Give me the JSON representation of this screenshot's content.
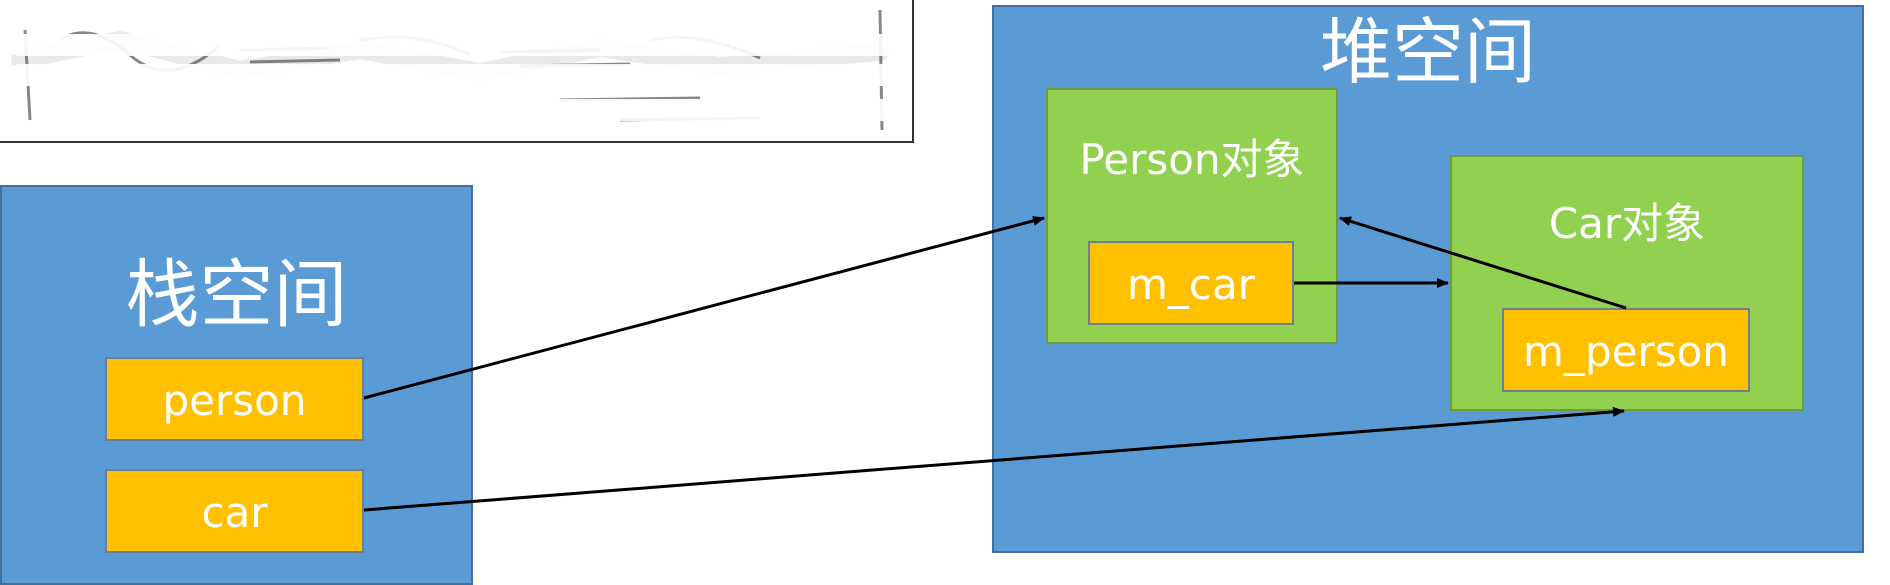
{
  "stack": {
    "title": "栈空间",
    "fields": [
      {
        "id": "person",
        "label": "person"
      },
      {
        "id": "car",
        "label": "car"
      }
    ]
  },
  "heap": {
    "title": "堆空间",
    "objects": [
      {
        "id": "person_obj",
        "title": "Person对象",
        "field": "m_car"
      },
      {
        "id": "car_obj",
        "title": "Car对象",
        "field": "m_person"
      }
    ]
  },
  "references": [
    {
      "from": "person",
      "to": "Person对象"
    },
    {
      "from": "car",
      "to": "m_person"
    },
    {
      "from": "m_car",
      "to": "Car对象"
    },
    {
      "from": "m_person",
      "to": "Person对象"
    }
  ],
  "colors": {
    "space_fill": "#5b9bd5",
    "object_fill": "#92d050",
    "field_fill": "#ffc000",
    "arrow": "#000000",
    "text": "#ffffff"
  }
}
